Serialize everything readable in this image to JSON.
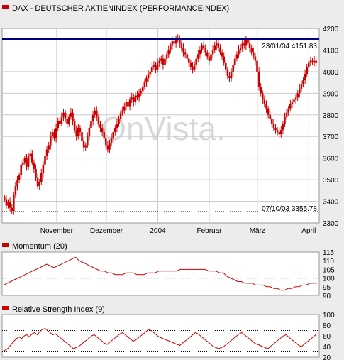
{
  "colors": {
    "background": "#ececec",
    "plot_background": "#ffffff",
    "series": "#cc0000",
    "reference_line": "#000080",
    "grid": "#cccccc",
    "axis_text": "#000000",
    "watermark": "#d8d8d8"
  },
  "watermark": "OnVista.",
  "chart_data": [
    {
      "type": "candlestick",
      "title": "DAX  - DEUTSCHER AKTIENINDEX (PERFORMANCEINDEX)",
      "ylim": [
        3300,
        4200
      ],
      "yticks": [
        3300,
        3400,
        3500,
        3600,
        3700,
        3800,
        3900,
        4000,
        4100,
        4200
      ],
      "xticks": [
        {
          "label": "November",
          "day": 32
        },
        {
          "label": "Dezember",
          "day": 62
        },
        {
          "label": "2004",
          "day": 93
        },
        {
          "label": "Februar",
          "day": 124
        },
        {
          "label": "März",
          "day": 153
        },
        {
          "label": "April",
          "day": 184
        }
      ],
      "date_range": {
        "start": "2003-10-01",
        "end": "2004-04-06"
      },
      "annotations": {
        "high": {
          "label": "23/01/04 4151.83",
          "date": "2004-01-23",
          "value": 4151.83
        },
        "low": {
          "label": "07/10/03 3355.78",
          "date": "2003-10-07",
          "value": 3355.78
        }
      },
      "close": [
        3410,
        3380,
        3395,
        3370,
        3356,
        3430,
        3470,
        3500,
        3520,
        3570,
        3580,
        3600,
        3560,
        3610,
        3620,
        3580,
        3550,
        3510,
        3470,
        3490,
        3530,
        3570,
        3610,
        3640,
        3660,
        3700,
        3720,
        3690,
        3740,
        3770,
        3760,
        3790,
        3810,
        3780,
        3760,
        3790,
        3810,
        3770,
        3730,
        3700,
        3740,
        3720,
        3680,
        3650,
        3660,
        3700,
        3740,
        3770,
        3800,
        3820,
        3790,
        3760,
        3740,
        3720,
        3690,
        3660,
        3640,
        3670,
        3690,
        3720,
        3740,
        3760,
        3780,
        3810,
        3820,
        3840,
        3860,
        3840,
        3870,
        3880,
        3860,
        3890,
        3880,
        3900,
        3910,
        3930,
        3950,
        3970,
        3990,
        4000,
        4020,
        4030,
        4010,
        4040,
        4050,
        4060,
        4030,
        4060,
        4080,
        4100,
        4120,
        4140,
        4130,
        4150,
        4152,
        4130,
        4110,
        4090,
        4080,
        4060,
        4040,
        4020,
        4010,
        4030,
        4060,
        4080,
        4100,
        4120,
        4110,
        4090,
        4070,
        4050,
        4080,
        4100,
        4120,
        4130,
        4110,
        4090,
        4070,
        4040,
        4010,
        3980,
        3970,
        4000,
        4030,
        4060,
        4080,
        4100,
        4110,
        4130,
        4120,
        4150,
        4130,
        4110,
        4090,
        4070,
        4050,
        4000,
        3930,
        3900,
        3870,
        3850,
        3830,
        3800,
        3780,
        3760,
        3740,
        3730,
        3720,
        3710,
        3730,
        3760,
        3790,
        3810,
        3830,
        3850,
        3860,
        3870,
        3880,
        3900,
        3920,
        3940,
        3960,
        3990,
        4020,
        4040,
        4050,
        4050,
        4040,
        4050
      ],
      "sub_panels": [
        {
          "type": "line",
          "title": "Momentum (20)",
          "ylim": [
            90,
            115
          ],
          "yticks": [
            90,
            95,
            100,
            105,
            110,
            115
          ],
          "reference": 100,
          "values": [
            96,
            97,
            98,
            99,
            100,
            101,
            102,
            103,
            104,
            105,
            106,
            107,
            108,
            107,
            106,
            107,
            108,
            109,
            110,
            111,
            112,
            110,
            109,
            108,
            107,
            106,
            105,
            104,
            104,
            103,
            103,
            102,
            102,
            102,
            103,
            103,
            103,
            102,
            102,
            102,
            103,
            103,
            103,
            104,
            104,
            104,
            104,
            104,
            104,
            105,
            105,
            105,
            105,
            105,
            105,
            105,
            105,
            104,
            104,
            104,
            103,
            103,
            101,
            100,
            99,
            98,
            98,
            97,
            97,
            97,
            96,
            96,
            96,
            95,
            95,
            94,
            94,
            93,
            93,
            94,
            94,
            95,
            95,
            96,
            96,
            97,
            97,
            97
          ]
        },
        {
          "type": "line",
          "title": "Relative Strength Index (9)",
          "ylim": [
            20,
            100
          ],
          "yticks": [
            20,
            40,
            60,
            80,
            100
          ],
          "reference_lines": [
            30,
            70
          ],
          "values": [
            32,
            34,
            38,
            44,
            50,
            55,
            58,
            55,
            60,
            62,
            58,
            64,
            66,
            62,
            68,
            72,
            74,
            70,
            66,
            62,
            64,
            60,
            56,
            52,
            48,
            44,
            40,
            36,
            38,
            40,
            44,
            48,
            52,
            56,
            60,
            62,
            58,
            54,
            50,
            46,
            44,
            48,
            52,
            56,
            60,
            64,
            66,
            62,
            58,
            54,
            50,
            52,
            56,
            60,
            64,
            68,
            72,
            70,
            66,
            62,
            58,
            56,
            54,
            52,
            50,
            48,
            46,
            44,
            42,
            46,
            50,
            54,
            58,
            62,
            66,
            64,
            60,
            56,
            52,
            48,
            44,
            40,
            38,
            36,
            38,
            40,
            44,
            48,
            52,
            56,
            60,
            64,
            66,
            62,
            58,
            54,
            50,
            46,
            44,
            42,
            40,
            38,
            36,
            40,
            44,
            48,
            52,
            56,
            60,
            62,
            58,
            54,
            50,
            46,
            42,
            40,
            44,
            48,
            52,
            56,
            60,
            64
          ]
        }
      ]
    }
  ]
}
